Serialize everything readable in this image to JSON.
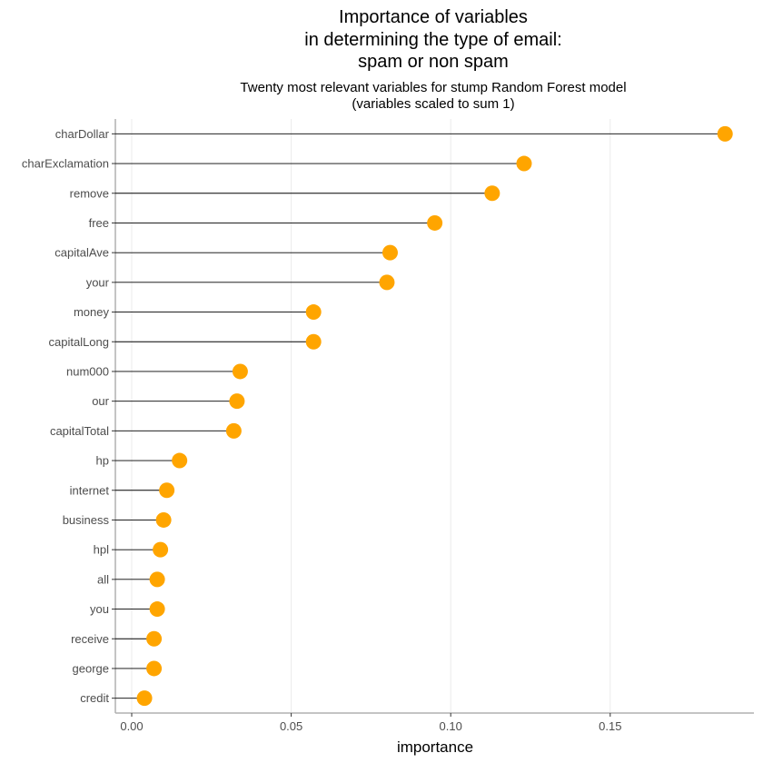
{
  "chart_data": {
    "type": "lollipop",
    "title": [
      "Importance of variables",
      "in determining the type of email:",
      "spam or non spam"
    ],
    "subtitle": [
      "Twenty most relevant variables for stump Random Forest model",
      "(variables scaled to sum 1)"
    ],
    "xlabel": "importance",
    "ylabel": "",
    "xlim": [
      -0.005,
      0.19
    ],
    "xticks": [
      0.0,
      0.05,
      0.1,
      0.15
    ],
    "xtick_labels": [
      "0.00",
      "0.05",
      "0.10",
      "0.15"
    ],
    "grid": "vertical-major",
    "point_color": "#FFA500",
    "line_color": "#000000",
    "categories": [
      "charDollar",
      "charExclamation",
      "remove",
      "free",
      "capitalAve",
      "your",
      "money",
      "capitalLong",
      "num000",
      "our",
      "capitalTotal",
      "hp",
      "internet",
      "business",
      "hpl",
      "all",
      "you",
      "receive",
      "george",
      "credit"
    ],
    "values": [
      0.186,
      0.123,
      0.113,
      0.095,
      0.081,
      0.08,
      0.057,
      0.057,
      0.034,
      0.033,
      0.032,
      0.015,
      0.011,
      0.01,
      0.009,
      0.008,
      0.008,
      0.007,
      0.007,
      0.004
    ]
  }
}
